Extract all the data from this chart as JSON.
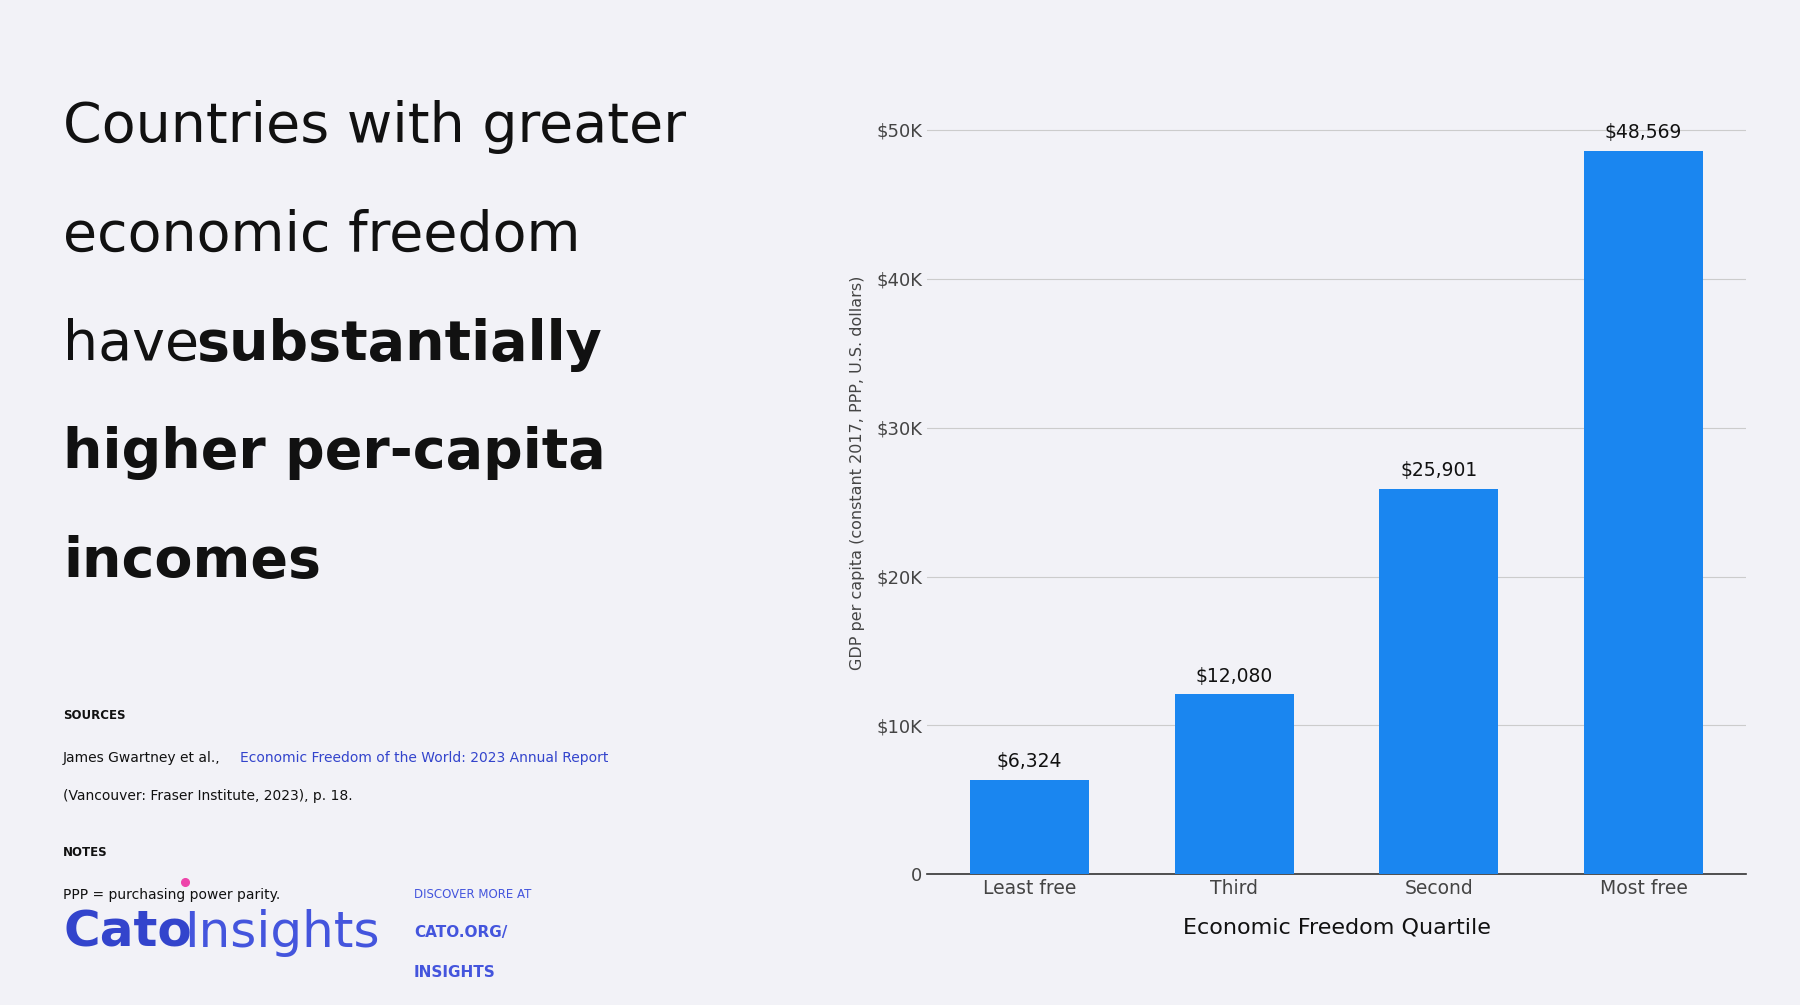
{
  "categories": [
    "Least free",
    "Third",
    "Second",
    "Most free"
  ],
  "values": [
    6324,
    12080,
    25901,
    48569
  ],
  "labels": [
    "$6,324",
    "$12,080",
    "$25,901",
    "$48,569"
  ],
  "bar_color": "#1a86f0",
  "background_color": "#f2f2f7",
  "ylabel": "GDP per capita (constant 2017, PPP, U.S. dollars)",
  "xlabel": "Economic Freedom Quartile",
  "yticks": [
    0,
    10000,
    20000,
    30000,
    40000,
    50000
  ],
  "ytick_labels": [
    "0",
    "$10K",
    "$20K",
    "$30K",
    "$40K",
    "$50K"
  ],
  "ylim": [
    0,
    54000
  ],
  "title_fontsize": 40,
  "sources_label": "SOURCES",
  "sources_text_normal": "James Gwartney et al., ",
  "sources_link": "Economic Freedom of the World: 2023 Annual Report",
  "sources_text_after": " (Vancouver: Fraser",
  "sources_text_after2": "Institute, 2023), p. 18.",
  "notes_label": "NOTES",
  "notes_text": "PPP = purchasing power parity.",
  "cato_color": "#3344cc",
  "insights_color": "#4455dd",
  "discover_color": "#4455dd",
  "dot_color": "#ee44aa",
  "link_color": "#3344cc",
  "grid_color": "#cccccc",
  "text_color": "#111111",
  "axis_label_color": "#444444",
  "bar_label_color": "#111111"
}
